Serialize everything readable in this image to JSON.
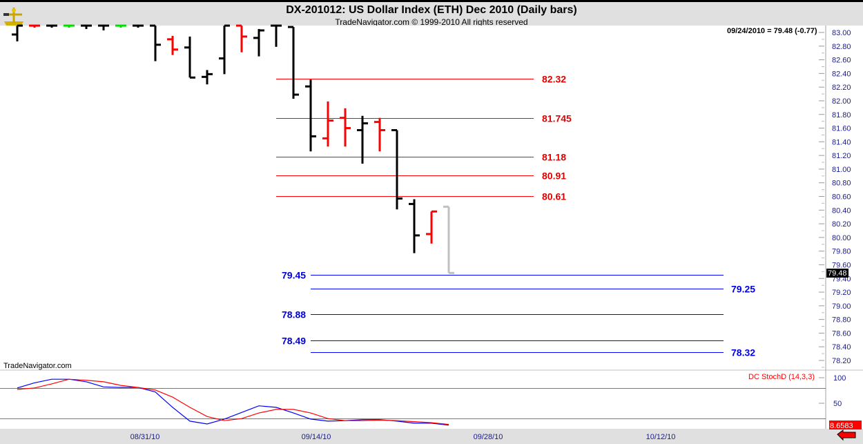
{
  "header": {
    "title": "DX-201012:  US Dollar Index (ETH) Dec 2010  (Daily bars)",
    "subtitle": "TradeNavigator.com © 1999-2010 All rights reserved",
    "logo_icon": "sextant-icon"
  },
  "readout": "09/24/2010 = 79.48 (-0.77)",
  "watermark": "TradeNavigator.com",
  "last_price_label": "79.48",
  "colors": {
    "up": "#000000",
    "down": "#ff0000",
    "green": "#00e000",
    "ghost": "#c0c0c0",
    "resistance": "#ff0000",
    "support": "#0000ff",
    "stoch_k": "#0000ff",
    "stoch_d": "#ff0000"
  },
  "chart_data": [
    {
      "type": "ohlc",
      "ylim": [
        78.1,
        83.1
      ],
      "yticks": [
        "83.00",
        "82.80",
        "82.60",
        "82.40",
        "82.20",
        "82.00",
        "81.80",
        "81.60",
        "81.40",
        "81.20",
        "81.00",
        "80.80",
        "80.60",
        "80.40",
        "80.20",
        "80.00",
        "79.80",
        "79.60",
        "79.40",
        "79.20",
        "79.00",
        "78.80",
        "78.60",
        "78.40",
        "78.20"
      ],
      "xtick_labels": [
        "08/31/10",
        "09/14/10",
        "09/28/10",
        "10/12/10"
      ],
      "bars": [
        {
          "o": 82.97,
          "h": 83.3,
          "l": 82.87,
          "c": 83.2,
          "color": "up"
        },
        {
          "o": 83.2,
          "h": 83.3,
          "l": 83.07,
          "c": 83.1,
          "color": "down"
        },
        {
          "o": 83.2,
          "h": 83.3,
          "l": 83.07,
          "c": 83.2,
          "color": "up"
        },
        {
          "o": 83.2,
          "h": 83.3,
          "l": 83.07,
          "c": 83.2,
          "color": "green"
        },
        {
          "o": 83.2,
          "h": 83.3,
          "l": 83.05,
          "c": 83.2,
          "color": "up"
        },
        {
          "o": 83.2,
          "h": 83.3,
          "l": 83.03,
          "c": 83.2,
          "color": "up"
        },
        {
          "o": 83.2,
          "h": 83.3,
          "l": 83.07,
          "c": 83.2,
          "color": "green"
        },
        {
          "o": 83.2,
          "h": 83.3,
          "l": 83.07,
          "c": 83.2,
          "color": "up"
        },
        {
          "o": 83.2,
          "h": 83.3,
          "l": 82.58,
          "c": 82.82,
          "color": "up"
        },
        {
          "o": 82.9,
          "h": 82.95,
          "l": 82.67,
          "c": 82.75,
          "color": "down"
        },
        {
          "o": 82.78,
          "h": 82.94,
          "l": 82.34,
          "c": 82.34,
          "color": "up"
        },
        {
          "o": 82.35,
          "h": 82.45,
          "l": 82.24,
          "c": 82.39,
          "color": "up"
        },
        {
          "o": 82.62,
          "h": 83.3,
          "l": 82.39,
          "c": 83.2,
          "color": "up"
        },
        {
          "o": 83.2,
          "h": 83.3,
          "l": 82.71,
          "c": 82.94,
          "color": "down"
        },
        {
          "o": 82.92,
          "h": 83.05,
          "l": 82.65,
          "c": 83.03,
          "color": "up"
        },
        {
          "o": 83.2,
          "h": 83.3,
          "l": 82.79,
          "c": 83.2,
          "color": "up"
        },
        {
          "o": 83.08,
          "h": 83.08,
          "l": 82.03,
          "c": 82.09,
          "color": "up"
        },
        {
          "o": 82.21,
          "h": 82.31,
          "l": 81.26,
          "c": 81.48,
          "color": "up"
        },
        {
          "o": 81.45,
          "h": 81.99,
          "l": 81.33,
          "c": 81.71,
          "color": "down"
        },
        {
          "o": 81.75,
          "h": 81.89,
          "l": 81.33,
          "c": 81.6,
          "color": "down"
        },
        {
          "o": 81.57,
          "h": 81.78,
          "l": 81.08,
          "c": 81.67,
          "color": "up"
        },
        {
          "o": 81.69,
          "h": 81.75,
          "l": 81.26,
          "c": 81.57,
          "color": "down"
        },
        {
          "o": 81.57,
          "h": 81.57,
          "l": 80.41,
          "c": 80.57,
          "color": "up"
        },
        {
          "o": 80.49,
          "h": 80.56,
          "l": 79.77,
          "c": 80.03,
          "color": "up"
        },
        {
          "o": 80.05,
          "h": 80.38,
          "l": 79.91,
          "c": 80.38,
          "color": "down"
        },
        {
          "o": 80.45,
          "h": 80.45,
          "l": 79.48,
          "c": 79.48,
          "color": "ghost"
        }
      ],
      "resistance_levels": [
        "82.32",
        "81.745",
        "81.18",
        "80.91",
        "80.61"
      ],
      "support_levels": [
        {
          "v": "79.45",
          "side": "left"
        },
        {
          "v": "79.25",
          "side": "right"
        },
        {
          "v": "78.88",
          "side": "left"
        },
        {
          "v": "78.49",
          "side": "left"
        },
        {
          "v": "78.32",
          "side": "right"
        }
      ]
    },
    {
      "type": "line",
      "title": "DC StochD (14,3,3)",
      "ylim": [
        0,
        100
      ],
      "yticks": [
        "100",
        "50"
      ],
      "reference_lines": [
        80,
        20
      ],
      "last_value": "8.6583",
      "series": [
        {
          "color": "stoch_k",
          "values": [
            80,
            90,
            97,
            97,
            92,
            82,
            81,
            81,
            72,
            42,
            15,
            9.5,
            19,
            32,
            45,
            42,
            31,
            19,
            15,
            16,
            18,
            18,
            15,
            11,
            11,
            7
          ]
        },
        {
          "color": "stoch_d",
          "values": [
            77,
            80,
            88,
            97,
            95,
            92,
            85,
            81,
            76,
            62,
            42,
            24,
            16,
            20,
            31,
            38,
            38,
            31,
            20,
            16,
            16,
            17,
            16,
            14,
            12,
            8.66
          ]
        }
      ]
    }
  ]
}
